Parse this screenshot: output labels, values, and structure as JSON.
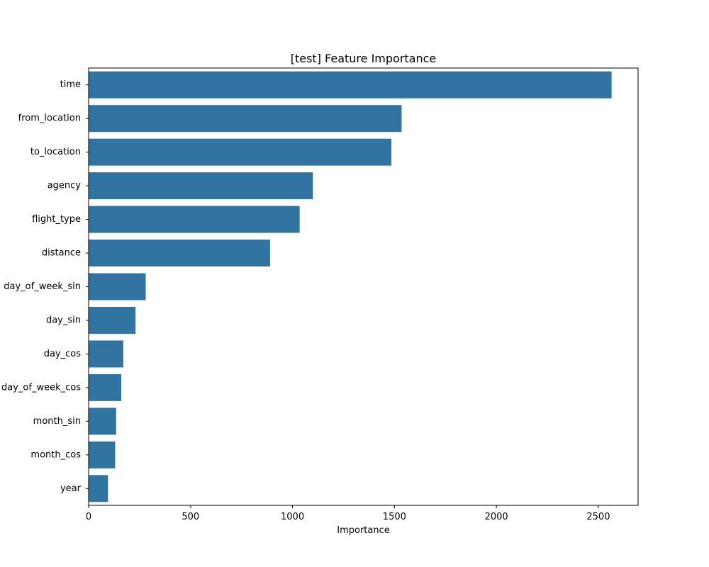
{
  "chart_data": {
    "type": "bar",
    "orientation": "horizontal",
    "title": "[test] Feature Importance",
    "xlabel": "Importance",
    "ylabel": "",
    "categories": [
      "time",
      "from_location",
      "to_location",
      "agency",
      "flight_type",
      "distance",
      "day_of_week_sin",
      "day_sin",
      "day_cos",
      "day_of_week_cos",
      "month_sin",
      "month_cos",
      "year"
    ],
    "values": [
      2565,
      1535,
      1485,
      1100,
      1035,
      890,
      280,
      230,
      170,
      160,
      135,
      130,
      95
    ],
    "xlim": [
      0,
      2695
    ],
    "xticks": [
      0,
      500,
      1000,
      1500,
      2000,
      2500
    ],
    "grid": false,
    "legend": "none",
    "bar_color": "#3274a1"
  }
}
